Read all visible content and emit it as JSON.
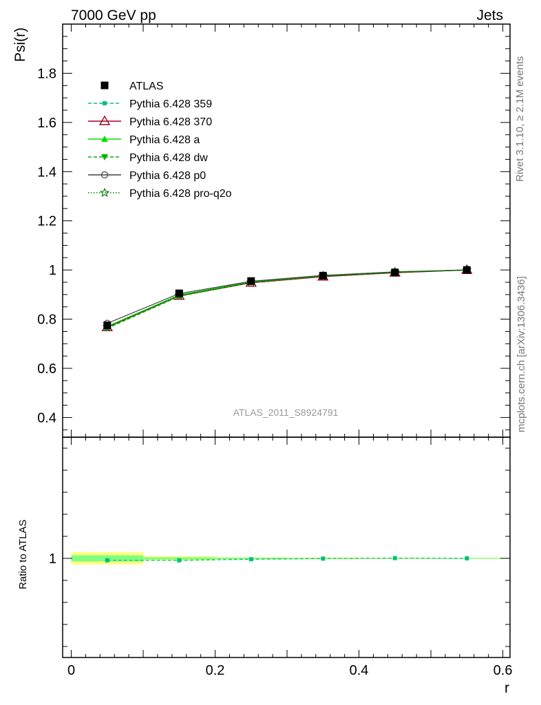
{
  "header": {
    "left": "7000 GeV pp",
    "right": "Jets"
  },
  "side": {
    "rivet": "Rivet 3.1.10, ≥ 2.1M events",
    "mcplots": "mcplots.cern.ch [arXiv:1306.3436]"
  },
  "watermark": "ATLAS_2011_S8924791",
  "colors": {
    "atlas": "#000000",
    "p359": "#00c080",
    "p370": "#a00020",
    "pa": "#00e000",
    "pdw": "#00b000",
    "p0": "#404040",
    "pq2o": "#007000",
    "band_yellow": "#ffff80",
    "band_green": "#80ff80"
  },
  "chart_data": {
    "type": "line",
    "ylabel": "Psi(r)",
    "ratio_ylabel": "Ratio to ATLAS",
    "xlabel": "r",
    "xlim": [
      -0.012,
      0.61
    ],
    "ylim": [
      0.32,
      2.0
    ],
    "ratio_ylim": [
      0.55,
      1.55
    ],
    "x_ticks": [
      0,
      0.2,
      0.4,
      0.6
    ],
    "x_tick_labels": [
      "0",
      "0.2",
      "0.4",
      "0.6"
    ],
    "y_ticks": [
      0.4,
      0.6,
      0.8,
      1.0,
      1.2,
      1.4,
      1.6,
      1.8
    ],
    "y_tick_labels": [
      "0.4",
      "0.6",
      "0.8",
      "1",
      "1.2",
      "1.4",
      "1.6",
      "1.8"
    ],
    "ratio_y_ticks": [
      1
    ],
    "ratio_y_tick_labels": [
      "1"
    ],
    "x": [
      0.05,
      0.15,
      0.25,
      0.35,
      0.45,
      0.55
    ],
    "series": [
      {
        "key": "atlas",
        "name": "ATLAS",
        "marker": "square-filled",
        "line": "none",
        "values": [
          0.775,
          0.905,
          0.955,
          0.977,
          0.99,
          1.0
        ]
      },
      {
        "key": "p359",
        "name": "Pythia 6.428 359",
        "marker": "square-small",
        "line": "dashed",
        "values": [
          0.768,
          0.897,
          0.951,
          0.976,
          0.991,
          1.0
        ]
      },
      {
        "key": "p370",
        "name": "Pythia 6.428 370",
        "marker": "triangle-open",
        "line": "solid",
        "values": [
          0.767,
          0.895,
          0.948,
          0.973,
          0.989,
          1.0
        ]
      },
      {
        "key": "pa",
        "name": "Pythia 6.428 a",
        "marker": "triangle-filled",
        "line": "solid",
        "values": [
          0.77,
          0.898,
          0.952,
          0.977,
          0.992,
          1.0
        ]
      },
      {
        "key": "pdw",
        "name": "Pythia 6.428 dw",
        "marker": "triangle-down-filled",
        "line": "dashed",
        "values": [
          0.763,
          0.893,
          0.949,
          0.975,
          0.99,
          1.0
        ]
      },
      {
        "key": "p0",
        "name": "Pythia 6.428 p0",
        "marker": "circle-open",
        "line": "solid",
        "values": [
          0.783,
          0.904,
          0.954,
          0.978,
          0.992,
          1.0
        ]
      },
      {
        "key": "pq2o",
        "name": "Pythia 6.428 pro-q2o",
        "marker": "star-open",
        "line": "dotted",
        "values": [
          0.769,
          0.897,
          0.951,
          0.976,
          0.991,
          1.0
        ]
      }
    ],
    "ratio": {
      "series_key": "p359",
      "values": [
        0.991,
        0.991,
        0.996,
        0.999,
        1.001,
        1.0
      ],
      "band_x": [
        0.0,
        0.1,
        0.2,
        0.3,
        0.4,
        0.5,
        0.6
      ],
      "band_yellow_half": [
        0.028,
        0.01,
        0.005,
        0.004,
        0.003,
        0.002
      ],
      "band_green_half": [
        0.014,
        0.005,
        0.003,
        0.002,
        0.0015,
        0.001
      ]
    }
  }
}
